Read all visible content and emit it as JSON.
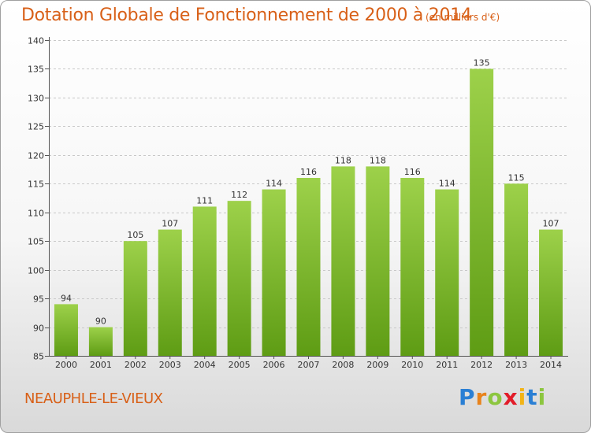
{
  "header": {
    "title": "Dotation Globale de Fonctionnement de 2000 à 2014",
    "subtitle": "(en milliers d'€)"
  },
  "footer": {
    "place": "NEAUPHLE-LE-VIEUX",
    "logo": {
      "letters": [
        "P",
        "r",
        "o",
        "x",
        "i",
        "t",
        "i"
      ],
      "colors": [
        "#2a7fd4",
        "#e8831c",
        "#8cc63f",
        "#e21c29",
        "#f2b417",
        "#2a7fd4",
        "#8cc63f"
      ]
    }
  },
  "colors": {
    "accent": "#d86018",
    "bar_light": "#9dd14a",
    "bar_dark": "#5e9c14",
    "grid": "#c8c8c8",
    "axis": "#555555"
  },
  "chart_data": {
    "type": "bar",
    "title": "Dotation Globale de Fonctionnement de 2000 à 2014",
    "subtitle": "(en milliers d'€)",
    "xlabel": "",
    "ylabel": "",
    "categories": [
      "2000",
      "2001",
      "2002",
      "2003",
      "2004",
      "2005",
      "2006",
      "2007",
      "2008",
      "2009",
      "2010",
      "2011",
      "2012",
      "2013",
      "2014"
    ],
    "values": [
      94,
      90,
      105,
      107,
      111,
      112,
      114,
      116,
      118,
      118,
      116,
      114,
      135,
      115,
      107
    ],
    "ylim": [
      85,
      140
    ],
    "yticks": [
      85,
      90,
      95,
      100,
      105,
      110,
      115,
      120,
      125,
      130,
      135,
      140
    ],
    "grid": true,
    "legend": "none"
  }
}
